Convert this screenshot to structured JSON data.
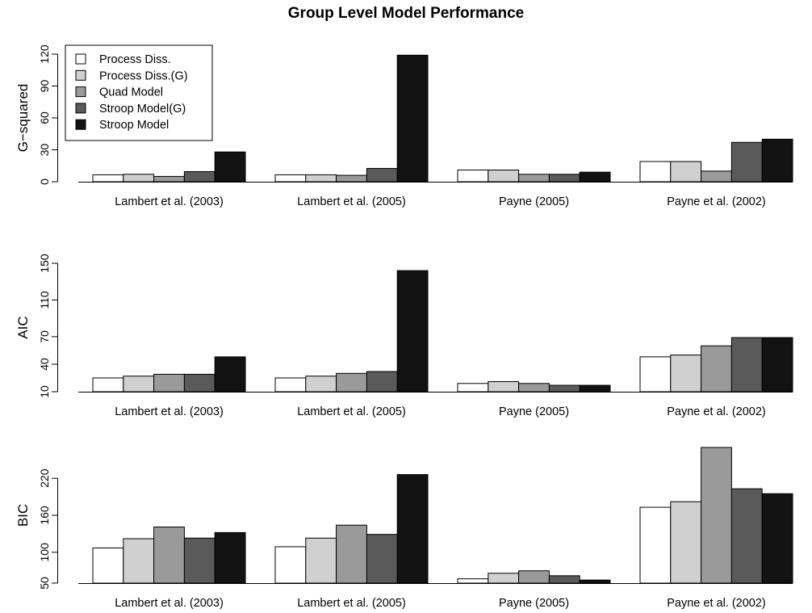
{
  "title": "Group Level Model Performance",
  "legend_position": "top-left (upper panel)",
  "series_styles": [
    {
      "name": "Process Diss.",
      "color": "#ffffff"
    },
    {
      "name": "Process Diss.(G)",
      "color": "#d0d0d0"
    },
    {
      "name": "Quad Model",
      "color": "#9a9a9a"
    },
    {
      "name": "Stroop Model(G)",
      "color": "#5a5a5a"
    },
    {
      "name": "Stroop Model",
      "color": "#121212"
    }
  ],
  "chart_data": [
    {
      "type": "bar",
      "ylabel": "G−squared",
      "ylim": [
        0,
        120
      ],
      "yticks": [
        0,
        30,
        60,
        90,
        120
      ],
      "categories": [
        "Lambert et al. (2003)",
        "Lambert et al. (2005)",
        "Payne (2005)",
        "Payne et al. (2002)"
      ],
      "series": [
        {
          "name": "Process Diss.",
          "values": [
            6.5,
            6.5,
            11,
            19
          ]
        },
        {
          "name": "Process Diss.(G)",
          "values": [
            7,
            6.5,
            11,
            19
          ]
        },
        {
          "name": "Quad Model",
          "values": [
            5,
            6,
            7,
            10
          ]
        },
        {
          "name": "Stroop Model(G)",
          "values": [
            9.5,
            12.5,
            7,
            37
          ]
        },
        {
          "name": "Stroop Model",
          "values": [
            28,
            119,
            9,
            40
          ]
        }
      ]
    },
    {
      "type": "bar",
      "ylabel": "AIC",
      "ylim": [
        10,
        150
      ],
      "yticks": [
        10,
        40,
        70,
        110,
        150
      ],
      "categories": [
        "Lambert et al. (2003)",
        "Lambert et al. (2005)",
        "Payne (2005)",
        "Payne et al. (2002)"
      ],
      "series": [
        {
          "name": "Process Diss.",
          "values": [
            25,
            25,
            19,
            48
          ]
        },
        {
          "name": "Process Diss.(G)",
          "values": [
            27,
            27,
            21,
            50
          ]
        },
        {
          "name": "Quad Model",
          "values": [
            29,
            30,
            19,
            60
          ]
        },
        {
          "name": "Stroop Model(G)",
          "values": [
            29,
            32,
            17,
            69
          ]
        },
        {
          "name": "Stroop Model",
          "values": [
            48,
            142,
            17,
            69
          ]
        }
      ]
    },
    {
      "type": "bar",
      "ylabel": "BIC",
      "ylim": [
        50,
        270
      ],
      "yticks": [
        50,
        100,
        160,
        220
      ],
      "categories": [
        "Lambert et al. (2003)",
        "Lambert et al. (2005)",
        "Payne (2005)",
        "Payne et al. (2002)"
      ],
      "series": [
        {
          "name": "Process Diss.",
          "values": [
            107,
            109,
            57,
            173
          ]
        },
        {
          "name": "Process Diss.(G)",
          "values": [
            122,
            123,
            66,
            182
          ]
        },
        {
          "name": "Quad Model",
          "values": [
            141,
            144,
            70,
            270
          ]
        },
        {
          "name": "Stroop Model(G)",
          "values": [
            123,
            129,
            62,
            203
          ]
        },
        {
          "name": "Stroop Model",
          "values": [
            132,
            226,
            55,
            195
          ]
        }
      ]
    }
  ]
}
